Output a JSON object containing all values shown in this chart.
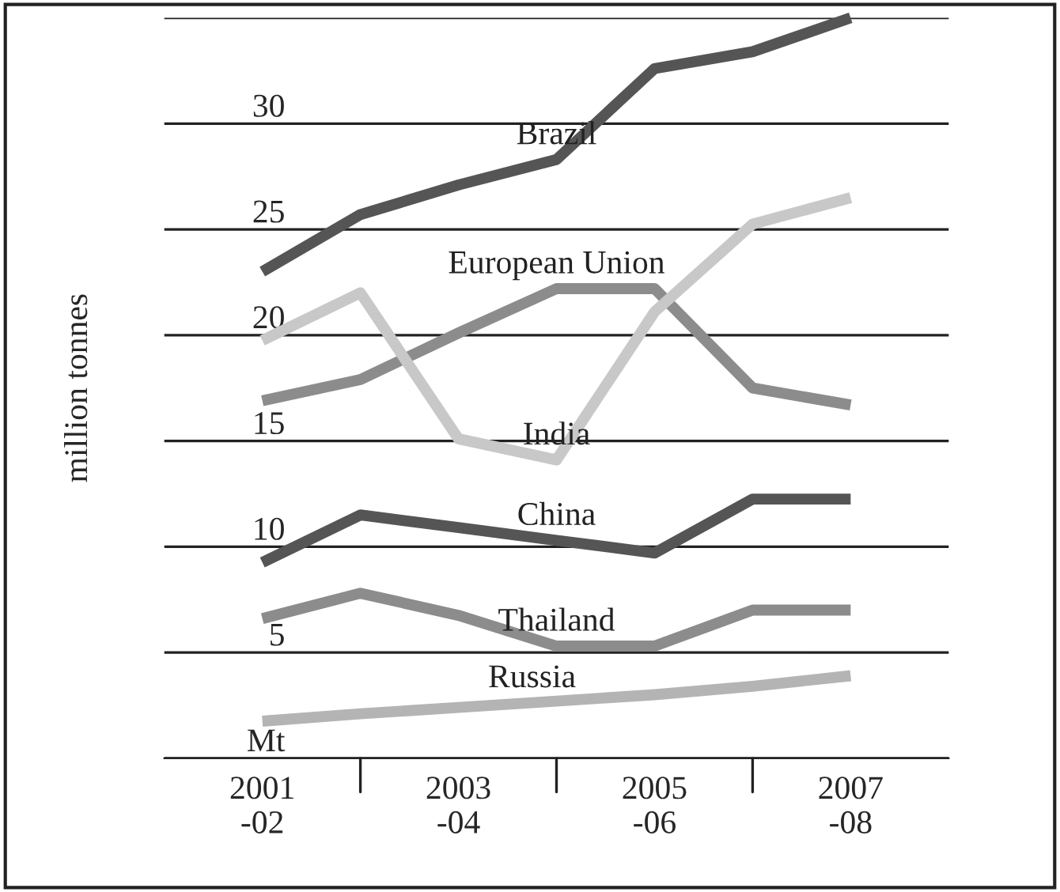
{
  "chart_data": {
    "type": "line",
    "ylabel": "million tonnes",
    "categories": [
      "2001\n-02",
      null,
      "2003\n-04",
      null,
      "2005\n-06",
      null,
      "2007\n-08"
    ],
    "series": [
      {
        "name": "Brazil",
        "color": "#555555",
        "values": [
          23,
          25.7,
          27.1,
          28.3,
          32.6,
          33.4,
          35
        ]
      },
      {
        "name": "European Union",
        "color": "#8c8c8c",
        "values": [
          16.9,
          17.9,
          20.1,
          22.2,
          22.2,
          17.5,
          16.7
        ]
      },
      {
        "name": "India",
        "color": "#c8c8c8",
        "values": [
          19.75,
          22,
          15.1,
          14.1,
          21.1,
          25.25,
          26.5
        ]
      },
      {
        "name": "China",
        "color": "#555555",
        "values": [
          9.25,
          11.5,
          10.9,
          10.3,
          9.7,
          12.25,
          12.25
        ]
      },
      {
        "name": "Thailand",
        "color": "#8c8c8c",
        "values": [
          6.6,
          7.8,
          6.75,
          5.3,
          5.3,
          7,
          7
        ]
      },
      {
        "name": "Russia",
        "color": "#b4b4b4",
        "values": [
          1.75,
          2.1,
          2.4,
          2.7,
          3.0,
          3.4,
          3.9
        ]
      }
    ],
    "ylim": [
      0,
      35
    ],
    "yticks": [
      {
        "value": 0,
        "label": "Mt"
      },
      5,
      10,
      15,
      20,
      25,
      30,
      {
        "value": 35,
        "label": null
      }
    ],
    "grid": "y",
    "legend": false,
    "marker": "none",
    "line_style": "solid"
  }
}
